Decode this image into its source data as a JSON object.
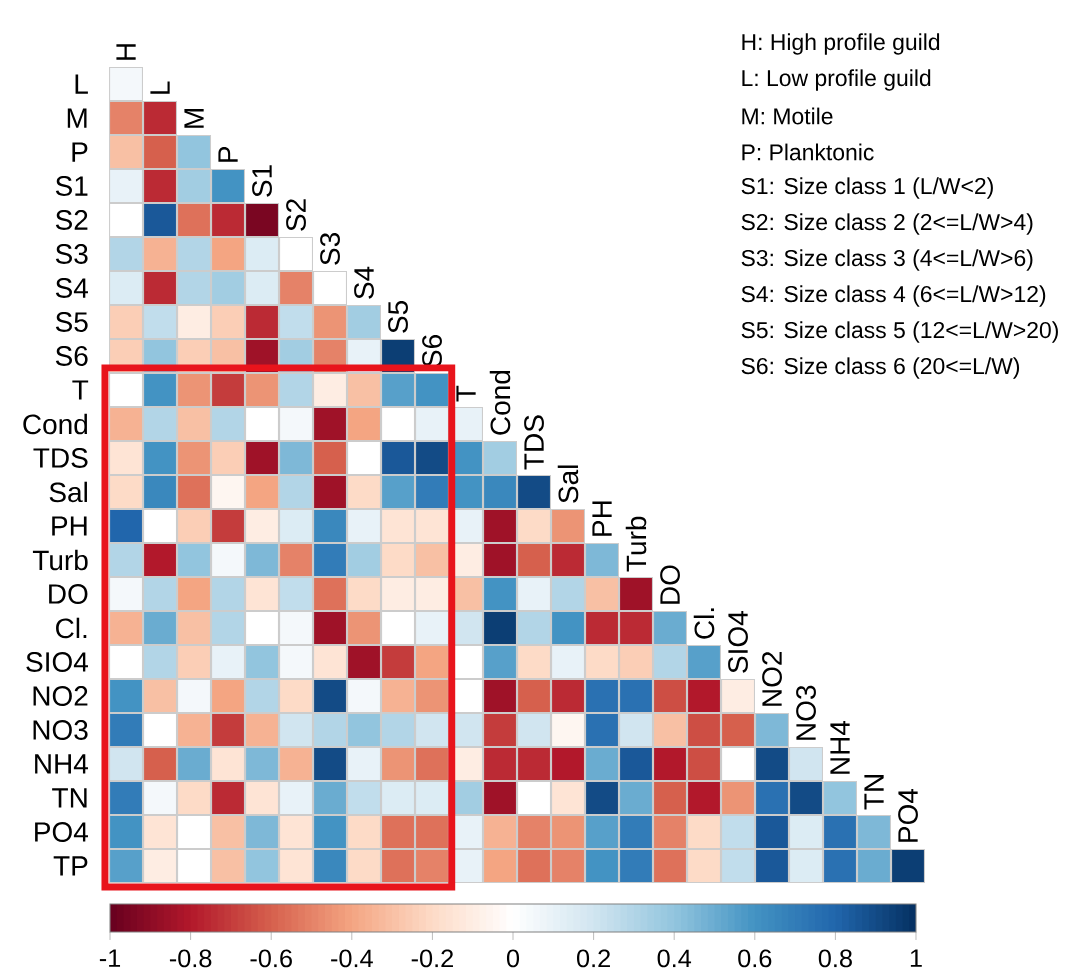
{
  "chart_data": {
    "type": "heatmap",
    "categories": [
      "H",
      "L",
      "M",
      "P",
      "S1",
      "S2",
      "S3",
      "S4",
      "S5",
      "S6",
      "T",
      "Cond",
      "TDS",
      "Sal",
      "PH",
      "Turb",
      "DO",
      "Cl.",
      "SIO4",
      "NO2",
      "NO3",
      "NH4",
      "TN",
      "PO4"
    ],
    "y_categories": [
      "L",
      "M",
      "P",
      "S1",
      "S2",
      "S3",
      "S4",
      "S5",
      "S6",
      "T",
      "Cond",
      "TDS",
      "Sal",
      "PH",
      "Turb",
      "DO",
      "Cl.",
      "SIO4",
      "NO2",
      "NO3",
      "NH4",
      "TN",
      "PO4",
      "TP"
    ],
    "cells": [
      [
        0.05,
        null,
        null,
        null,
        null,
        null,
        null,
        null,
        null,
        null,
        null,
        null,
        null,
        null,
        null,
        null,
        null,
        null,
        null,
        null,
        null,
        null,
        null,
        null
      ],
      [
        -0.5,
        -0.75,
        null,
        null,
        null,
        null,
        null,
        null,
        null,
        null,
        null,
        null,
        null,
        null,
        null,
        null,
        null,
        null,
        null,
        null,
        null,
        null,
        null,
        null
      ],
      [
        -0.3,
        -0.6,
        0.4,
        null,
        null,
        null,
        null,
        null,
        null,
        null,
        null,
        null,
        null,
        null,
        null,
        null,
        null,
        null,
        null,
        null,
        null,
        null,
        null,
        null
      ],
      [
        0.1,
        -0.75,
        0.35,
        0.6,
        null,
        null,
        null,
        null,
        null,
        null,
        null,
        null,
        null,
        null,
        null,
        null,
        null,
        null,
        null,
        null,
        null,
        null,
        null,
        null
      ],
      [
        0,
        0.85,
        -0.55,
        -0.75,
        -0.95,
        null,
        null,
        null,
        null,
        null,
        null,
        null,
        null,
        null,
        null,
        null,
        null,
        null,
        null,
        null,
        null,
        null,
        null,
        null
      ],
      [
        0.3,
        -0.35,
        0.3,
        -0.4,
        0.15,
        0,
        null,
        null,
        null,
        null,
        null,
        null,
        null,
        null,
        null,
        null,
        null,
        null,
        null,
        null,
        null,
        null,
        null,
        null
      ],
      [
        0.15,
        -0.75,
        0.3,
        0.35,
        0.15,
        -0.5,
        0,
        null,
        null,
        null,
        null,
        null,
        null,
        null,
        null,
        null,
        null,
        null,
        null,
        null,
        null,
        null,
        null,
        null
      ],
      [
        -0.25,
        0.25,
        -0.1,
        -0.25,
        -0.75,
        0.25,
        -0.45,
        0.35,
        null,
        null,
        null,
        null,
        null,
        null,
        null,
        null,
        null,
        null,
        null,
        null,
        null,
        null,
        null,
        null
      ],
      [
        -0.25,
        0.4,
        -0.25,
        -0.3,
        -0.85,
        0.35,
        -0.5,
        0.1,
        0.95,
        null,
        null,
        null,
        null,
        null,
        null,
        null,
        null,
        null,
        null,
        null,
        null,
        null,
        null,
        null
      ],
      [
        0,
        0.6,
        -0.45,
        -0.7,
        -0.45,
        0.3,
        -0.1,
        -0.3,
        0.55,
        0.6,
        null,
        null,
        null,
        null,
        null,
        null,
        null,
        null,
        null,
        null,
        null,
        null,
        null,
        null
      ],
      [
        -0.35,
        0.3,
        -0.3,
        0.3,
        0,
        0.05,
        -0.85,
        -0.4,
        0,
        0.1,
        0.1,
        null,
        null,
        null,
        null,
        null,
        null,
        null,
        null,
        null,
        null,
        null,
        null,
        null
      ],
      [
        -0.15,
        0.6,
        -0.45,
        -0.25,
        -0.85,
        0.45,
        -0.6,
        0,
        0.85,
        0.9,
        0.6,
        0.35,
        null,
        null,
        null,
        null,
        null,
        null,
        null,
        null,
        null,
        null,
        null,
        null
      ],
      [
        -0.2,
        0.65,
        -0.55,
        -0.05,
        -0.4,
        0.3,
        -0.85,
        -0.2,
        0.55,
        0.7,
        0.6,
        0.65,
        0.9,
        null,
        null,
        null,
        null,
        null,
        null,
        null,
        null,
        null,
        null,
        null
      ],
      [
        0.8,
        0,
        -0.25,
        -0.7,
        -0.1,
        0.15,
        0.65,
        0.1,
        -0.15,
        -0.15,
        0.1,
        -0.85,
        -0.2,
        -0.45,
        null,
        null,
        null,
        null,
        null,
        null,
        null,
        null,
        null,
        null
      ],
      [
        0.3,
        -0.8,
        0.4,
        0.05,
        0.45,
        -0.5,
        0.7,
        0.35,
        -0.2,
        -0.3,
        -0.1,
        -0.85,
        -0.6,
        -0.75,
        0.45,
        null,
        null,
        null,
        null,
        null,
        null,
        null,
        null,
        null
      ],
      [
        0.05,
        0.3,
        -0.4,
        0.3,
        -0.15,
        0.25,
        -0.55,
        -0.2,
        -0.1,
        -0.1,
        -0.3,
        0.6,
        0.1,
        0.3,
        -0.3,
        -0.85,
        null,
        null,
        null,
        null,
        null,
        null,
        null,
        null
      ],
      [
        -0.35,
        0.5,
        -0.3,
        0.3,
        0,
        0.05,
        -0.85,
        -0.45,
        0,
        0.1,
        0.2,
        0.95,
        0.3,
        0.6,
        -0.75,
        -0.75,
        0.5,
        null,
        null,
        null,
        null,
        null,
        null,
        null
      ],
      [
        0,
        0.3,
        -0.25,
        0.1,
        0.4,
        0.05,
        -0.15,
        -0.85,
        -0.7,
        -0.4,
        0,
        0.55,
        -0.2,
        0.1,
        -0.2,
        -0.25,
        0.3,
        0.55,
        null,
        null,
        null,
        null,
        null,
        null
      ],
      [
        0.6,
        -0.3,
        0.05,
        -0.4,
        0.3,
        -0.2,
        0.9,
        0.05,
        -0.35,
        -0.45,
        0,
        -0.85,
        -0.6,
        -0.75,
        0.75,
        0.75,
        -0.65,
        -0.8,
        -0.1,
        null,
        null,
        null,
        null,
        null
      ],
      [
        0.7,
        0,
        -0.35,
        -0.7,
        -0.35,
        0.2,
        0.3,
        0.4,
        0.3,
        0.2,
        0.2,
        -0.7,
        0.2,
        -0.05,
        0.75,
        0.2,
        -0.3,
        -0.65,
        -0.6,
        0.45,
        null,
        null,
        null,
        null
      ],
      [
        0.2,
        -0.6,
        0.5,
        -0.15,
        0.45,
        -0.35,
        0.9,
        0.1,
        -0.45,
        -0.55,
        -0.1,
        -0.75,
        -0.75,
        -0.8,
        0.5,
        0.85,
        -0.8,
        -0.65,
        0,
        0.9,
        0.2,
        null,
        null,
        null
      ],
      [
        0.7,
        0.05,
        -0.2,
        -0.75,
        -0.15,
        0.1,
        0.5,
        0.25,
        0.15,
        0.15,
        0.35,
        -0.85,
        0,
        -0.15,
        0.9,
        0.5,
        -0.6,
        -0.8,
        -0.45,
        0.75,
        0.9,
        0.4,
        null,
        null
      ],
      [
        0.6,
        -0.15,
        0,
        -0.3,
        0.45,
        -0.15,
        0.6,
        -0.2,
        -0.55,
        -0.55,
        0.1,
        -0.35,
        -0.5,
        -0.45,
        0.55,
        0.7,
        -0.5,
        -0.2,
        0.25,
        0.85,
        0.15,
        0.75,
        0.45,
        null
      ],
      [
        0.55,
        -0.1,
        0,
        -0.3,
        0.4,
        -0.15,
        0.65,
        -0.2,
        -0.55,
        -0.5,
        0.1,
        -0.4,
        -0.55,
        -0.5,
        0.6,
        0.7,
        -0.55,
        -0.2,
        0.25,
        0.85,
        0.15,
        0.75,
        0.5,
        0.95
      ]
    ],
    "clim": [
      -1,
      1
    ],
    "cticks": [
      -1,
      -0.8,
      -0.6,
      -0.4,
      -0.2,
      0,
      0.2,
      0.4,
      0.6,
      0.8,
      1
    ],
    "annotations": [
      "H: High profile guild",
      "L: Low profile guild",
      "M: Motile",
      "P: Planktonic",
      "S1: Size class 1 (L/W<2)",
      "S2: Size class 2 (2<=L/W>4)",
      "S3: Size class 3 (4<=L/W>6)",
      "S4: Size class 4 (6<=L/W>12)",
      "S5: Size class 5 (12<=L/W>20)",
      "S6: Size class 6 (20<=L/W)"
    ]
  }
}
